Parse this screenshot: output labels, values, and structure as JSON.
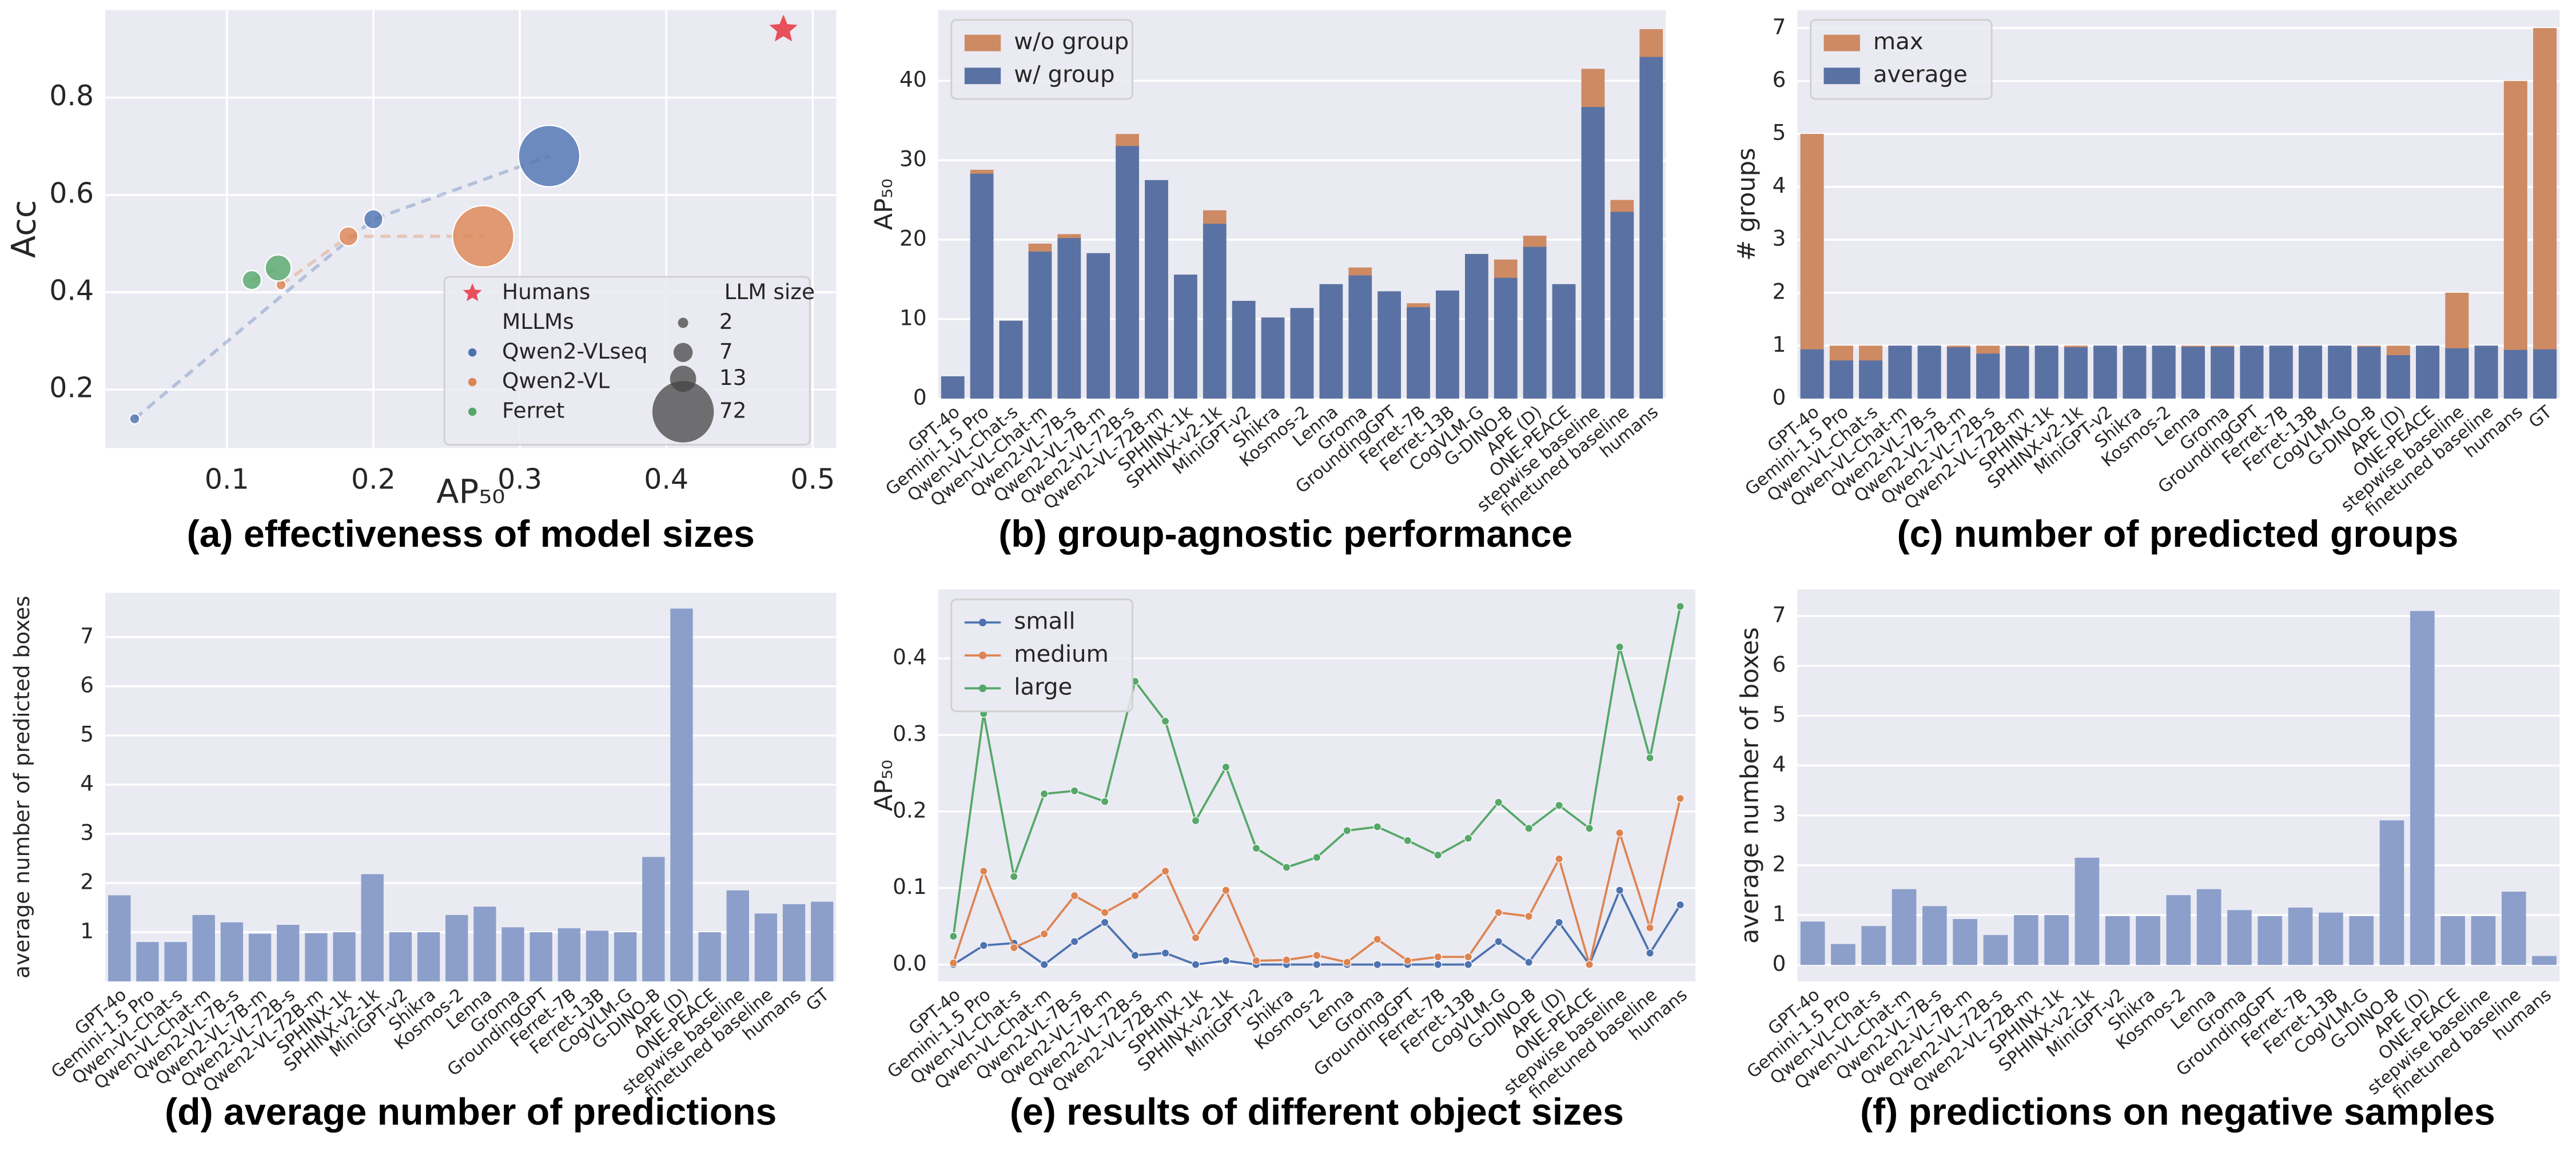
{
  "chart_data": [
    {
      "type": "scatter",
      "title": "(a) effectiveness of model sizes",
      "xlabel": "AP₅₀",
      "ylabel": "Acc",
      "xlim": [
        0.017,
        0.516
      ],
      "ylim": [
        0.08,
        0.98
      ],
      "xticks": [
        0.1,
        0.2,
        0.3,
        0.4,
        0.5
      ],
      "yticks": [
        0.2,
        0.4,
        0.6,
        0.8
      ],
      "grid": true,
      "legend_title": "MLLMs",
      "size_legend_title": "LLM size",
      "size_legend": [
        2,
        7,
        13,
        72
      ],
      "series": [
        {
          "name": "Humans",
          "color": "#e8505b",
          "marker": "star",
          "x": [
            0.48
          ],
          "y": [
            0.94
          ]
        },
        {
          "name": "Qwen2-VLseq",
          "color": "#4c72b0",
          "x": [
            0.037,
            0.2,
            0.32
          ],
          "y": [
            0.14,
            0.55,
            0.68
          ],
          "size": [
            2,
            7,
            72
          ]
        },
        {
          "name": "Qwen2-VL",
          "color": "#dd8452",
          "x": [
            0.137,
            0.183,
            0.275
          ],
          "y": [
            0.415,
            0.515,
            0.515
          ],
          "size": [
            2,
            7,
            72
          ]
        },
        {
          "name": "Ferret",
          "color": "#55a868",
          "x": [
            0.117,
            0.135
          ],
          "y": [
            0.425,
            0.45
          ],
          "size": [
            7,
            13
          ]
        }
      ]
    },
    {
      "type": "bar",
      "overlay": true,
      "title": "(b) group-agnostic performance",
      "ylabel": "AP₅₀",
      "ylim": [
        0,
        48.9
      ],
      "yticks": [
        0,
        10,
        20,
        30,
        40
      ],
      "grid": true,
      "legend": "upper left",
      "categories": [
        "GPT-4o",
        "Gemini-1.5 Pro",
        "Qwen-VL-Chat-s",
        "Qwen-VL-Chat-m",
        "Qwen2-VL-7B-s",
        "Qwen2-VL-7B-m",
        "Qwen2-VL-72B-s",
        "Qwen2-VL-72B-m",
        "SPHINX-1k",
        "SPHINX-v2-1k",
        "MiniGPT-v2",
        "Shikra",
        "Kosmos-2",
        "Lenna",
        "Groma",
        "GroundingGPT",
        "Ferret-7B",
        "Ferret-13B",
        "CogVLM-G",
        "G-DINO-B",
        "APE (D)",
        "ONE-PEACE",
        "stepwise baseline",
        "finetuned baseline",
        "humans"
      ],
      "series": [
        {
          "name": "w/o group",
          "color": "#cd8a63",
          "values": [
            2.8,
            28.8,
            9.8,
            19.5,
            20.7,
            18.3,
            33.3,
            27.5,
            15.6,
            23.7,
            12.3,
            10.2,
            11.4,
            14.4,
            16.5,
            13.5,
            12.0,
            13.6,
            18.2,
            17.5,
            20.5,
            14.4,
            41.5,
            25.0,
            46.5
          ]
        },
        {
          "name": "w/ group",
          "color": "#5a72a3",
          "values": [
            2.8,
            28.3,
            9.8,
            18.5,
            20.2,
            18.3,
            31.8,
            27.5,
            15.6,
            22.0,
            12.3,
            10.2,
            11.4,
            14.4,
            15.5,
            13.5,
            11.5,
            13.6,
            18.2,
            15.2,
            19.1,
            14.4,
            36.7,
            23.5,
            43.0
          ]
        }
      ]
    },
    {
      "type": "bar",
      "overlay": true,
      "title": "(c) number of predicted groups",
      "ylabel": "# groups",
      "ylim": [
        0,
        7.34
      ],
      "yticks": [
        0,
        1,
        2,
        3,
        4,
        5,
        6,
        7
      ],
      "grid": true,
      "legend": "upper left",
      "categories": [
        "GPT-4o",
        "Gemini-1.5 Pro",
        "Qwen-VL-Chat-s",
        "Qwen-VL-Chat-m",
        "Qwen2-VL-7B-s",
        "Qwen2-VL-7B-m",
        "Qwen2-VL-72B-s",
        "Qwen2-VL-72B-m",
        "SPHINX-1k",
        "SPHINX-v2-1k",
        "MiniGPT-v2",
        "Shikra",
        "Kosmos-2",
        "Lenna",
        "Groma",
        "GroundingGPT",
        "Ferret-7B",
        "Ferret-13B",
        "CogVLM-G",
        "G-DINO-B",
        "APE (D)",
        "ONE-PEACE",
        "stepwise baseline",
        "finetuned baseline",
        "humans",
        "GT"
      ],
      "series": [
        {
          "name": "max",
          "color": "#cd8a63",
          "values": [
            5,
            1,
            1,
            1,
            1,
            1,
            1,
            1,
            1,
            1,
            1,
            1,
            1,
            1,
            1,
            1,
            1,
            1,
            1,
            1,
            1,
            1,
            2,
            1,
            6,
            7
          ]
        },
        {
          "name": "average",
          "color": "#5a72a3",
          "values": [
            0.93,
            0.72,
            0.72,
            1,
            1,
            0.97,
            0.85,
            0.99,
            1,
            0.97,
            1,
            1,
            1,
            0.98,
            0.98,
            1,
            1,
            1,
            1,
            0.98,
            0.82,
            1,
            0.95,
            1,
            0.92,
            0.93
          ]
        }
      ]
    },
    {
      "type": "bar",
      "title": "(d) average number of predictions",
      "ylabel": "average number of predicted boxes",
      "ylim": [
        0,
        7.9
      ],
      "yticks": [
        1,
        2,
        3,
        4,
        5,
        6,
        7
      ],
      "grid": true,
      "color": "#8c9fcb",
      "categories": [
        "GPT-4o",
        "Gemini-1.5 Pro",
        "Qwen-VL-Chat-s",
        "Qwen-VL-Chat-m",
        "Qwen2-VL-7B-s",
        "Qwen2-VL-7B-m",
        "Qwen2-VL-72B-s",
        "Qwen2-VL-72B-m",
        "SPHINX-1k",
        "SPHINX-v2-1k",
        "MiniGPT-v2",
        "Shikra",
        "Kosmos-2",
        "Lenna",
        "Groma",
        "GroundingGPT",
        "Ferret-7B",
        "Ferret-13B",
        "CogVLM-G",
        "G-DINO-B",
        "APE (D)",
        "ONE-PEACE",
        "stepwise baseline",
        "finetuned baseline",
        "humans",
        "GT"
      ],
      "values": [
        1.75,
        0.8,
        0.8,
        1.35,
        1.2,
        0.97,
        1.15,
        0.98,
        1.0,
        2.18,
        1.0,
        1.0,
        1.35,
        1.52,
        1.1,
        1.0,
        1.08,
        1.03,
        1.0,
        2.53,
        7.58,
        1.0,
        1.85,
        1.38,
        1.57,
        1.62
      ]
    },
    {
      "type": "line",
      "title": "(e) results of different object sizes",
      "ylabel": "AP₅₀",
      "ylim": [
        -0.022,
        0.49
      ],
      "yticks": [
        {
          "value": 0,
          "label": "0.0"
        },
        0.1,
        0.2,
        0.3,
        0.4
      ],
      "grid": true,
      "legend": "upper left",
      "categories": [
        "GPT-4o",
        "Gemini-1.5 Pro",
        "Qwen-VL-Chat-s",
        "Qwen-VL-Chat-m",
        "Qwen2-VL-7B-s",
        "Qwen2-VL-7B-m",
        "Qwen2-VL-72B-s",
        "Qwen2-VL-72B-m",
        "SPHINX-1k",
        "SPHINX-v2-1k",
        "MiniGPT-v2",
        "Shikra",
        "Kosmos-2",
        "Lenna",
        "Groma",
        "GroundingGPT",
        "Ferret-7B",
        "Ferret-13B",
        "CogVLM-G",
        "G-DINO-B",
        "APE (D)",
        "ONE-PEACE",
        "stepwise baseline",
        "finetuned baseline",
        "humans"
      ],
      "series": [
        {
          "name": "small",
          "color": "#4c72b0",
          "values": [
            0.0,
            0.025,
            0.028,
            0.0,
            0.03,
            0.055,
            0.012,
            0.015,
            0.0,
            0.005,
            0.0,
            0.0,
            0.0,
            0.0,
            0.0,
            0.0,
            0.0,
            0.0,
            0.03,
            0.003,
            0.055,
            0.0,
            0.097,
            0.015,
            0.078
          ]
        },
        {
          "name": "medium",
          "color": "#dd8452",
          "values": [
            0.002,
            0.122,
            0.022,
            0.04,
            0.09,
            0.068,
            0.09,
            0.122,
            0.035,
            0.097,
            0.005,
            0.006,
            0.012,
            0.003,
            0.033,
            0.005,
            0.01,
            0.01,
            0.068,
            0.063,
            0.138,
            0.0,
            0.172,
            0.048,
            0.217
          ]
        },
        {
          "name": "large",
          "color": "#55a868",
          "values": [
            0.037,
            0.328,
            0.115,
            0.223,
            0.227,
            0.213,
            0.37,
            0.318,
            0.188,
            0.258,
            0.152,
            0.127,
            0.14,
            0.175,
            0.18,
            0.162,
            0.143,
            0.165,
            0.212,
            0.178,
            0.208,
            0.178,
            0.415,
            0.27,
            0.468
          ]
        }
      ]
    },
    {
      "type": "bar",
      "title": "(f) predictions on negative samples",
      "ylabel": "average number of boxes",
      "ylim": [
        -0.33,
        7.53
      ],
      "yticks": [
        0,
        1,
        2,
        3,
        4,
        5,
        6,
        7
      ],
      "grid": true,
      "color": "#8c9fcb",
      "categories": [
        "GPT-4o",
        "Gemini-1.5 Pro",
        "Qwen-VL-Chat-s",
        "Qwen-VL-Chat-m",
        "Qwen2-VL-7B-s",
        "Qwen2-VL-7B-m",
        "Qwen2-VL-72B-s",
        "Qwen2-VL-72B-m",
        "SPHINX-1k",
        "SPHINX-v2-1k",
        "MiniGPT-v2",
        "Shikra",
        "Kosmos-2",
        "Lenna",
        "Groma",
        "GroundingGPT",
        "Ferret-7B",
        "Ferret-13B",
        "CogVLM-G",
        "G-DINO-B",
        "APE (D)",
        "ONE-PEACE",
        "stepwise baseline",
        "finetuned baseline",
        "humans"
      ],
      "values": [
        0.87,
        0.42,
        0.78,
        1.52,
        1.18,
        0.92,
        0.6,
        1.0,
        1.0,
        2.15,
        0.98,
        0.98,
        1.4,
        1.52,
        1.1,
        0.98,
        1.15,
        1.05,
        0.98,
        2.9,
        7.1,
        0.98,
        0.98,
        1.47,
        0.18
      ]
    }
  ]
}
